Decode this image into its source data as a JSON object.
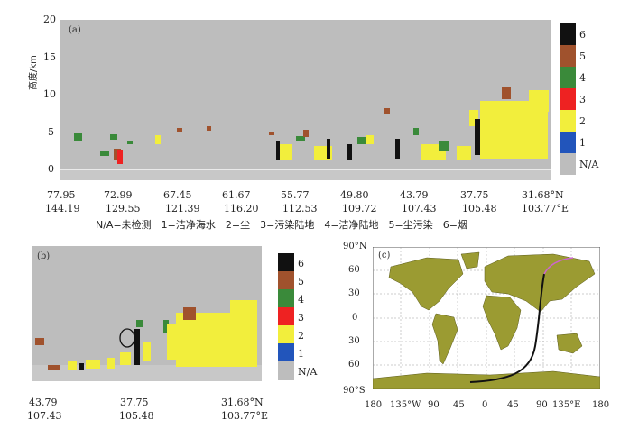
{
  "panel_a": {
    "tag": "(a)",
    "y_label": "高度/km",
    "y_ticks": [
      "20",
      "15",
      "10",
      "5",
      "0"
    ],
    "x_lat": [
      "77.95",
      "72.99",
      "67.45",
      "61.67",
      "55.77",
      "49.80",
      "43.79",
      "37.75",
      "31.68°N"
    ],
    "x_lon": [
      "144.19",
      "129.55",
      "121.39",
      "116.20",
      "112.53",
      "109.72",
      "107.43",
      "105.48",
      "103.77°E"
    ],
    "colorbar": [
      "6",
      "5",
      "4",
      "3",
      "2",
      "1",
      "N/A"
    ]
  },
  "legend_text": "N/A=未检测　1=洁净海水　2=尘　3=污染陆地　4=洁净陆地　5=尘污染　6=烟",
  "panel_b": {
    "tag": "(b)",
    "x_lat": [
      "43.79",
      "37.75",
      "31.68°N"
    ],
    "x_lon": [
      "107.43",
      "105.48",
      "103.77°E"
    ],
    "colorbar": [
      "6",
      "5",
      "4",
      "3",
      "2",
      "1",
      "N/A"
    ]
  },
  "panel_c": {
    "tag": "(c)",
    "lat_ticks": [
      "90°N",
      "60",
      "30",
      "0",
      "30",
      "60",
      "90°S"
    ],
    "lon_ticks": [
      "180",
      "135°W",
      "90",
      "45",
      "0",
      "45",
      "90",
      "135°E",
      "180"
    ]
  },
  "colors": {
    "na": "#bdbdbd",
    "clean_marine": "#2255bb",
    "dust": "#f2ee3c",
    "polluted_continental": "#ee2222",
    "clean_continental": "#3a8a3a",
    "polluted_dust": "#a0522d",
    "smoke": "#111111",
    "land": "#9b9b32",
    "ocean": "#ffffff"
  }
}
